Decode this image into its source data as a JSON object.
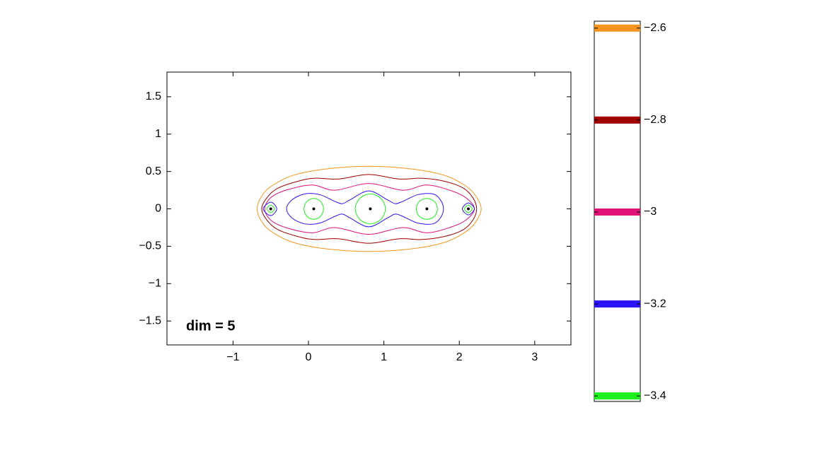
{
  "chart_data": {
    "type": "contour",
    "annotation": "dim = 5",
    "xlim": [
      -1.876,
      3.48
    ],
    "ylim": [
      -1.82,
      1.83
    ],
    "xticks": [
      {
        "value": -1,
        "label": "−1"
      },
      0,
      1,
      2,
      3
    ],
    "yticks": [
      {
        "value": -1.5,
        "label": "−1.5"
      },
      {
        "value": -1,
        "label": "−1"
      },
      {
        "value": -0.5,
        "label": "−0.5"
      },
      0,
      0.5,
      1,
      1.5
    ],
    "levels": [
      -2.6,
      -2.8,
      -3,
      -3.2,
      -3.4
    ],
    "colors": [
      "#f7941d",
      "#a00000",
      "#e0127a",
      "#2a14ff",
      "#1ef01e"
    ],
    "contours": [
      {
        "level": -2.6,
        "x": [
          -0.68,
          -0.6,
          -0.45,
          -0.2,
          0.2,
          0.8,
          1.4,
          1.8,
          2.05,
          2.2,
          2.29,
          2.2,
          2.05,
          1.8,
          1.4,
          0.8,
          0.2,
          -0.2,
          -0.45,
          -0.6
        ],
        "y": [
          0,
          0.2,
          0.33,
          0.45,
          0.53,
          0.57,
          0.53,
          0.45,
          0.33,
          0.2,
          0,
          -0.2,
          -0.33,
          -0.45,
          -0.53,
          -0.57,
          -0.53,
          -0.45,
          -0.33,
          -0.2
        ]
      },
      {
        "level": -2.8,
        "x": [
          -0.62,
          -0.55,
          -0.4,
          -0.1,
          0.1,
          0.4,
          0.8,
          1.2,
          1.5,
          1.8,
          2.05,
          2.18,
          2.23,
          2.18,
          2.05,
          1.8,
          1.5,
          1.2,
          0.8,
          0.4,
          0.1,
          -0.1,
          -0.4,
          -0.55
        ],
        "y": [
          0,
          0.15,
          0.28,
          0.38,
          0.41,
          0.4,
          0.46,
          0.4,
          0.41,
          0.37,
          0.28,
          0.15,
          0,
          -0.15,
          -0.28,
          -0.37,
          -0.41,
          -0.4,
          -0.46,
          -0.4,
          -0.41,
          -0.38,
          -0.28,
          -0.15
        ]
      },
      {
        "level": -3,
        "x": [
          -0.58,
          -0.5,
          -0.3,
          0.05,
          0.35,
          0.8,
          1.25,
          1.57,
          1.9,
          2.1,
          2.2,
          2.1,
          1.9,
          1.57,
          1.25,
          0.8,
          0.35,
          0.05,
          -0.3,
          -0.5
        ],
        "y": [
          0,
          0.15,
          0.25,
          0.32,
          0.25,
          0.34,
          0.25,
          0.32,
          0.24,
          0.14,
          0,
          -0.14,
          -0.24,
          -0.32,
          -0.25,
          -0.34,
          -0.25,
          -0.32,
          -0.25,
          -0.15
        ]
      },
      {
        "level": -3.2,
        "x": [
          -0.29,
          -0.22,
          -0.05,
          0.15,
          0.35,
          0.45,
          0.55,
          0.8,
          1.05,
          1.15,
          1.25,
          1.45,
          1.65,
          1.75,
          1.79,
          1.75,
          1.65,
          1.45,
          1.25,
          1.15,
          1.05,
          0.8,
          0.55,
          0.45,
          0.35,
          0.15,
          -0.05,
          -0.22
        ],
        "y": [
          0,
          0.12,
          0.2,
          0.19,
          0.1,
          0.07,
          0.12,
          0.24,
          0.12,
          0.07,
          0.1,
          0.19,
          0.2,
          0.12,
          0,
          -0.12,
          -0.2,
          -0.19,
          -0.1,
          -0.07,
          -0.12,
          -0.24,
          -0.12,
          -0.07,
          -0.1,
          -0.19,
          -0.2,
          -0.12
        ]
      },
      {
        "level": -3.2,
        "x": [
          -0.6,
          -0.5,
          -0.42,
          -0.5
        ],
        "y": [
          0,
          0.09,
          0,
          -0.09
        ]
      },
      {
        "level": -3.2,
        "x": [
          2.04,
          2.12,
          2.2,
          2.12
        ],
        "y": [
          0,
          0.08,
          0,
          -0.08
        ]
      },
      {
        "level": -3.4,
        "x": [
          -0.06,
          -0.02,
          0.07,
          0.16,
          0.2,
          0.16,
          0.07,
          -0.02
        ],
        "y": [
          0,
          0.1,
          0.14,
          0.1,
          0,
          -0.1,
          -0.14,
          -0.1
        ]
      },
      {
        "level": -3.4,
        "x": [
          0.62,
          0.68,
          0.82,
          0.96,
          1.02,
          0.96,
          0.82,
          0.68
        ],
        "y": [
          0,
          0.14,
          0.2,
          0.14,
          0,
          -0.14,
          -0.2,
          -0.14
        ]
      },
      {
        "level": -3.4,
        "x": [
          1.43,
          1.47,
          1.57,
          1.67,
          1.71,
          1.67,
          1.57,
          1.47
        ],
        "y": [
          0,
          0.1,
          0.14,
          0.1,
          0,
          -0.1,
          -0.14,
          -0.1
        ]
      },
      {
        "level": -3.4,
        "x": [
          -0.55,
          -0.5,
          -0.45,
          -0.5
        ],
        "y": [
          0,
          0.05,
          0,
          -0.05
        ]
      },
      {
        "level": -3.4,
        "x": [
          2.07,
          2.12,
          2.17,
          2.12
        ],
        "y": [
          0,
          0.05,
          0,
          -0.05
        ]
      }
    ],
    "points": {
      "x": [
        -0.5,
        0.07,
        0.82,
        1.57,
        2.12
      ],
      "y": [
        0,
        0,
        0,
        0,
        0
      ]
    },
    "colorbar": {
      "lim": [
        -3.412,
        -2.585
      ],
      "ticks": [
        {
          "value": -2.6,
          "label": "−2.6"
        },
        {
          "value": -2.8,
          "label": "−2.8"
        },
        {
          "value": -3,
          "label": "−3"
        },
        {
          "value": -3.2,
          "label": "−3.2"
        },
        {
          "value": -3.4,
          "label": "−3.4"
        }
      ]
    }
  }
}
